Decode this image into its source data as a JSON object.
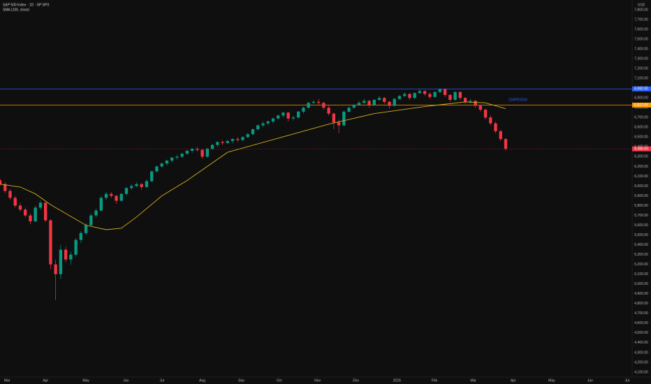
{
  "chart_data": {
    "type": "candlestick",
    "title": "S&P 500 Index · 1D · SP:SPX",
    "currency": "USD",
    "up_color": "#089981",
    "down_color": "#f23645",
    "x": [
      0,
      1,
      2,
      3,
      4,
      5,
      6,
      7,
      8,
      9,
      10,
      11,
      12,
      13,
      14,
      15,
      16,
      17,
      18,
      19,
      20,
      21,
      22,
      23,
      24,
      25,
      26,
      27,
      28,
      29,
      30,
      31,
      32,
      33,
      34,
      35,
      36,
      37,
      38,
      39,
      40,
      41,
      42,
      43,
      44,
      45,
      46,
      47,
      48,
      49,
      50,
      51,
      52,
      53,
      54,
      55,
      56,
      57,
      58,
      59,
      60,
      61,
      62,
      63,
      64,
      65,
      66,
      67,
      68,
      69,
      70,
      71,
      72,
      73,
      74,
      75,
      76,
      77,
      78,
      79,
      80,
      81,
      82,
      83,
      84,
      85,
      86,
      87,
      88,
      89,
      90,
      91,
      92,
      93,
      94,
      95,
      96,
      97,
      98,
      99,
      100
    ],
    "ohlc": [
      [
        6060,
        6080,
        6000,
        6020
      ],
      [
        6020,
        6040,
        5930,
        5950
      ],
      [
        5950,
        5970,
        5860,
        5880
      ],
      [
        5880,
        5900,
        5780,
        5800
      ],
      [
        5800,
        5830,
        5740,
        5760
      ],
      [
        5760,
        5780,
        5680,
        5700
      ],
      [
        5700,
        5720,
        5610,
        5640
      ],
      [
        5640,
        5800,
        5630,
        5780
      ],
      [
        5780,
        5850,
        5760,
        5830
      ],
      [
        5830,
        5840,
        5630,
        5650
      ],
      [
        5650,
        5660,
        5150,
        5200
      ],
      [
        5200,
        5250,
        4835,
        5100
      ],
      [
        5100,
        5400,
        5050,
        5350
      ],
      [
        5350,
        5380,
        5220,
        5250
      ],
      [
        5250,
        5330,
        5200,
        5300
      ],
      [
        5300,
        5470,
        5280,
        5450
      ],
      [
        5450,
        5540,
        5420,
        5520
      ],
      [
        5520,
        5620,
        5500,
        5600
      ],
      [
        5600,
        5720,
        5590,
        5700
      ],
      [
        5700,
        5770,
        5680,
        5750
      ],
      [
        5750,
        5900,
        5740,
        5880
      ],
      [
        5880,
        5940,
        5860,
        5920
      ],
      [
        5920,
        5940,
        5880,
        5900
      ],
      [
        5900,
        5910,
        5820,
        5850
      ],
      [
        5850,
        5930,
        5840,
        5920
      ],
      [
        5920,
        5990,
        5900,
        5980
      ],
      [
        5980,
        6020,
        5960,
        6000
      ],
      [
        6000,
        6040,
        5990,
        6020
      ],
      [
        6020,
        6030,
        5960,
        5990
      ],
      [
        5990,
        6070,
        5980,
        6050
      ],
      [
        6050,
        6160,
        6040,
        6150
      ],
      [
        6150,
        6210,
        6140,
        6200
      ],
      [
        6200,
        6240,
        6190,
        6230
      ],
      [
        6230,
        6270,
        6210,
        6260
      ],
      [
        6260,
        6300,
        6240,
        6290
      ],
      [
        6290,
        6320,
        6270,
        6300
      ],
      [
        6300,
        6340,
        6290,
        6330
      ],
      [
        6330,
        6370,
        6320,
        6360
      ],
      [
        6360,
        6390,
        6340,
        6380
      ],
      [
        6380,
        6400,
        6350,
        6370
      ],
      [
        6370,
        6380,
        6280,
        6300
      ],
      [
        6300,
        6390,
        6290,
        6380
      ],
      [
        6380,
        6430,
        6370,
        6420
      ],
      [
        6420,
        6460,
        6400,
        6450
      ],
      [
        6450,
        6470,
        6420,
        6440
      ],
      [
        6440,
        6470,
        6430,
        6460
      ],
      [
        6460,
        6490,
        6440,
        6480
      ],
      [
        6480,
        6500,
        6450,
        6470
      ],
      [
        6470,
        6510,
        6460,
        6500
      ],
      [
        6500,
        6540,
        6490,
        6530
      ],
      [
        6530,
        6590,
        6520,
        6580
      ],
      [
        6580,
        6630,
        6570,
        6620
      ],
      [
        6620,
        6660,
        6600,
        6640
      ],
      [
        6640,
        6670,
        6620,
        6660
      ],
      [
        6660,
        6700,
        6640,
        6690
      ],
      [
        6690,
        6730,
        6680,
        6720
      ],
      [
        6720,
        6760,
        6700,
        6750
      ],
      [
        6750,
        6760,
        6660,
        6690
      ],
      [
        6690,
        6720,
        6670,
        6700
      ],
      [
        6700,
        6770,
        6690,
        6760
      ],
      [
        6760,
        6810,
        6740,
        6800
      ],
      [
        6800,
        6860,
        6790,
        6850
      ],
      [
        6850,
        6880,
        6840,
        6860
      ],
      [
        6860,
        6890,
        6830,
        6850
      ],
      [
        6850,
        6860,
        6780,
        6800
      ],
      [
        6800,
        6820,
        6720,
        6740
      ],
      [
        6740,
        6750,
        6580,
        6650
      ],
      [
        6650,
        6680,
        6540,
        6620
      ],
      [
        6620,
        6770,
        6610,
        6760
      ],
      [
        6760,
        6810,
        6750,
        6800
      ],
      [
        6800,
        6840,
        6790,
        6830
      ],
      [
        6830,
        6870,
        6820,
        6850
      ],
      [
        6850,
        6890,
        6840,
        6870
      ],
      [
        6870,
        6880,
        6800,
        6830
      ],
      [
        6830,
        6890,
        6820,
        6880
      ],
      [
        6880,
        6920,
        6870,
        6900
      ],
      [
        6900,
        6910,
        6840,
        6860
      ],
      [
        6860,
        6870,
        6790,
        6820
      ],
      [
        6820,
        6900,
        6810,
        6890
      ],
      [
        6890,
        6930,
        6880,
        6920
      ],
      [
        6920,
        6960,
        6910,
        6940
      ],
      [
        6940,
        6950,
        6880,
        6900
      ],
      [
        6900,
        6960,
        6890,
        6950
      ],
      [
        6950,
        6990,
        6940,
        6970
      ],
      [
        6970,
        6980,
        6920,
        6940
      ],
      [
        6940,
        6960,
        6890,
        6910
      ],
      [
        6910,
        6970,
        6900,
        6960
      ],
      [
        6960,
        6995,
        6950,
        6990
      ],
      [
        6990,
        6995,
        6910,
        6930
      ],
      [
        6930,
        6940,
        6860,
        6880
      ],
      [
        6880,
        6970,
        6870,
        6960
      ],
      [
        6960,
        6970,
        6880,
        6900
      ],
      [
        6900,
        6910,
        6840,
        6860
      ],
      [
        6860,
        6890,
        6840,
        6870
      ],
      [
        6870,
        6880,
        6800,
        6820
      ],
      [
        6820,
        6830,
        6760,
        6780
      ],
      [
        6780,
        6790,
        6680,
        6700
      ],
      [
        6700,
        6720,
        6620,
        6640
      ],
      [
        6640,
        6660,
        6540,
        6560
      ],
      [
        6560,
        6580,
        6460,
        6480
      ],
      [
        6480,
        6490,
        6360,
        6380
      ]
    ],
    "sma": {
      "name": "SMA (100, close)",
      "color": "#d4b020",
      "x": [
        0,
        4,
        7,
        10,
        14,
        17,
        21,
        24,
        27,
        32,
        37,
        45,
        55,
        65,
        74,
        84,
        92,
        96,
        100
      ],
      "values": [
        6020,
        5990,
        5920,
        5810,
        5690,
        5600,
        5554,
        5570,
        5684,
        5900,
        6057,
        6345,
        6489,
        6632,
        6740,
        6812,
        6860,
        6850,
        6790
      ]
    },
    "levels": [
      {
        "value": 6992,
        "label": "6,992.00",
        "color": "#2962ff"
      },
      {
        "value": 6827,
        "label": "6,827.00",
        "color": "#ff9800"
      }
    ],
    "last_price": {
      "value": 6380,
      "label": "6,380.00",
      "color": "#f23645"
    },
    "annotation": "22APR2026",
    "annotation_color": "#2962ff",
    "xlim": [
      0,
      125
    ],
    "xticks": [
      {
        "value": 1.4,
        "label": "Mar"
      },
      {
        "value": 9,
        "label": "Apr"
      },
      {
        "value": 17,
        "label": "May"
      },
      {
        "value": 24.9,
        "label": "Jun"
      },
      {
        "value": 32,
        "label": "Jul"
      },
      {
        "value": 40,
        "label": "Aug"
      },
      {
        "value": 47.7,
        "label": "Sep"
      },
      {
        "value": 55.2,
        "label": "Oct"
      },
      {
        "value": 62.8,
        "label": "Nov"
      },
      {
        "value": 70.4,
        "label": "Dec"
      },
      {
        "value": 78.5,
        "label": "2026"
      },
      {
        "value": 85.9,
        "label": "Feb"
      },
      {
        "value": 93.6,
        "label": "Mar"
      },
      {
        "value": 101.5,
        "label": "Apr"
      },
      {
        "value": 109.1,
        "label": "May"
      },
      {
        "value": 116.7,
        "label": "Jun"
      },
      {
        "value": 124,
        "label": "Jul"
      }
    ],
    "ylim": [
      4050,
      7900
    ],
    "yticks": [
      {
        "value": 4100,
        "label": "4,100.00"
      },
      {
        "value": 4200,
        "label": "4,200.00"
      },
      {
        "value": 4300,
        "label": "4,300.00"
      },
      {
        "value": 4400,
        "label": "4,400.00"
      },
      {
        "value": 4500,
        "label": "4,500.00"
      },
      {
        "value": 4600,
        "label": "4,600.00"
      },
      {
        "value": 4700,
        "label": "4,700.00"
      },
      {
        "value": 4800,
        "label": "4,800.00"
      },
      {
        "value": 4900,
        "label": "4,900.00"
      },
      {
        "value": 5000,
        "label": "5,000.00"
      },
      {
        "value": 5100,
        "label": "5,100.00"
      },
      {
        "value": 5200,
        "label": "5,200.00"
      },
      {
        "value": 5300,
        "label": "5,300.00"
      },
      {
        "value": 5400,
        "label": "5,400.00"
      },
      {
        "value": 5500,
        "label": "5,500.00"
      },
      {
        "value": 5600,
        "label": "5,600.00"
      },
      {
        "value": 5700,
        "label": "5,700.00"
      },
      {
        "value": 5800,
        "label": "5,800.00"
      },
      {
        "value": 5900,
        "label": "5,900.00"
      },
      {
        "value": 6000,
        "label": "6,000.00"
      },
      {
        "value": 6100,
        "label": "6,100.00"
      },
      {
        "value": 6200,
        "label": "6,200.00"
      },
      {
        "value": 6300,
        "label": "6,300.00"
      },
      {
        "value": 6400,
        "label": "6,400.00"
      },
      {
        "value": 6500,
        "label": "6,500.00"
      },
      {
        "value": 6600,
        "label": "6,600.00"
      },
      {
        "value": 6700,
        "label": "6,700.00"
      },
      {
        "value": 6800,
        "label": "6,800.00"
      },
      {
        "value": 6900,
        "label": "6,900.00"
      },
      {
        "value": 7000,
        "label": "7,000.00"
      },
      {
        "value": 7100,
        "label": "7,100.00"
      },
      {
        "value": 7200,
        "label": "7,200.00"
      },
      {
        "value": 7300,
        "label": "7,300.00"
      },
      {
        "value": 7400,
        "label": "7,400.00"
      },
      {
        "value": 7500,
        "label": "7,500.00"
      },
      {
        "value": 7600,
        "label": "7,600.00"
      },
      {
        "value": 7700,
        "label": "7,700.00"
      },
      {
        "value": 7800,
        "label": "7,800.00"
      }
    ]
  }
}
